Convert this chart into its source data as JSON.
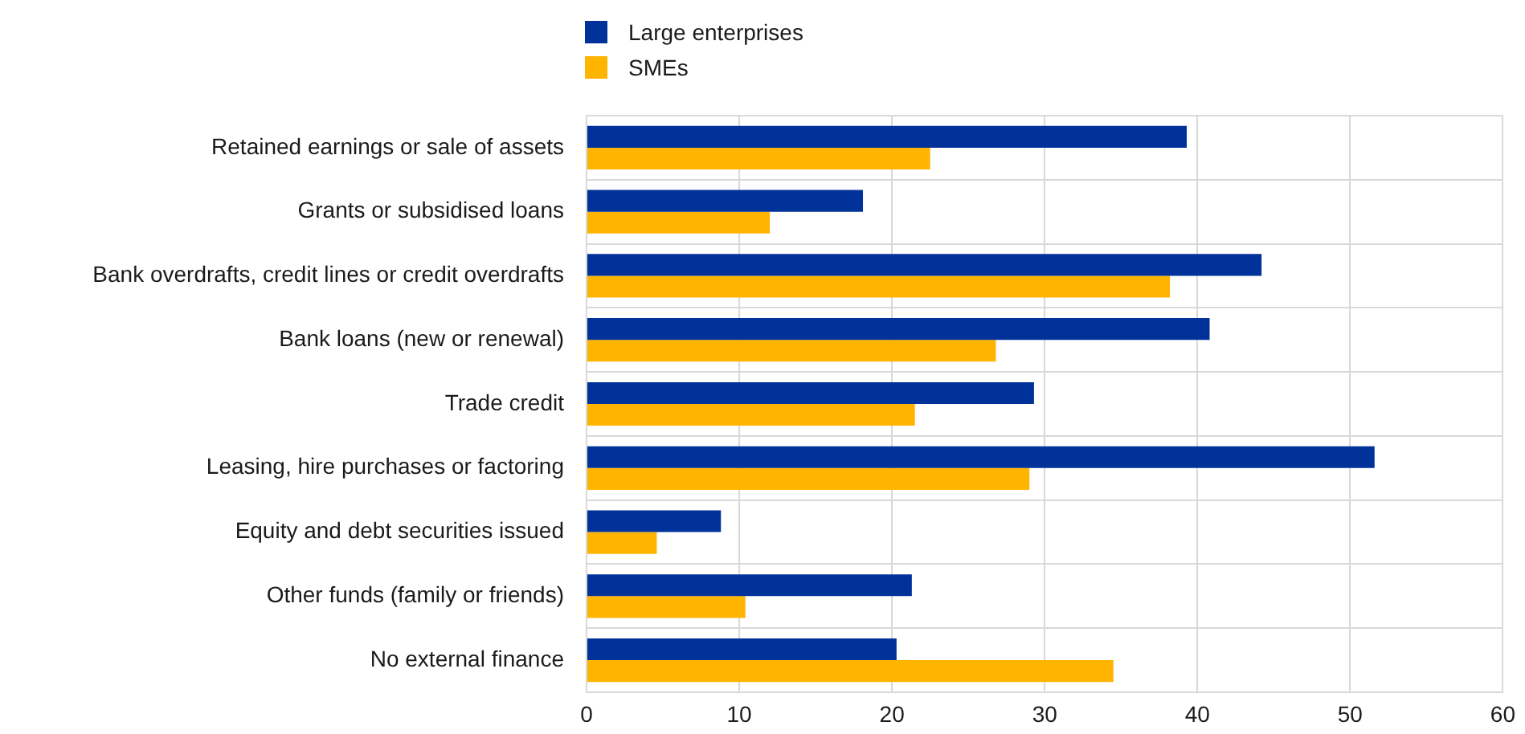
{
  "chart_data": {
    "type": "bar",
    "orientation": "horizontal",
    "categories": [
      "Retained earnings or sale of assets",
      "Grants or subsidised loans",
      "Bank overdrafts, credit lines or credit overdrafts",
      "Bank loans (new or renewal)",
      "Trade credit",
      "Leasing, hire purchases or factoring",
      "Equity and debt securities issued",
      "Other funds (family or friends)",
      "No external finance"
    ],
    "series": [
      {
        "name": "Large enterprises",
        "color": "#003299",
        "values": [
          39.3,
          18.1,
          44.2,
          40.8,
          29.3,
          51.6,
          8.8,
          21.3,
          20.3
        ]
      },
      {
        "name": "SMEs",
        "color": "#ffb400",
        "values": [
          22.5,
          12.0,
          38.2,
          26.8,
          21.5,
          29.0,
          4.6,
          10.4,
          34.5
        ]
      }
    ],
    "xlim": [
      0,
      60
    ],
    "xticks": [
      0,
      10,
      20,
      30,
      40,
      50,
      60
    ],
    "grid": true,
    "legend": "top left"
  }
}
